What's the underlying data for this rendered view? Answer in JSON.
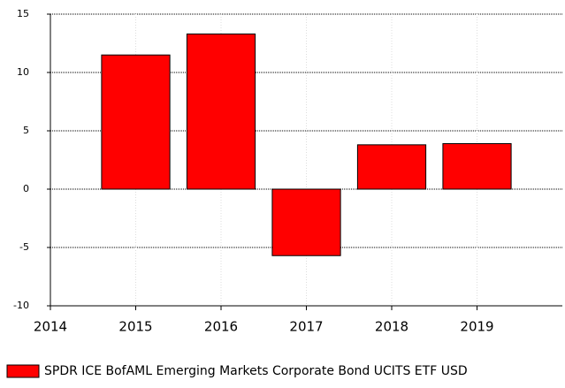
{
  "chart_data": {
    "type": "bar",
    "x": [
      2015,
      2016,
      2017,
      2018,
      2019
    ],
    "series": [
      {
        "name": "SPDR ICE BofAML Emerging Markets Corporate Bond UCITS ETF USD",
        "color": "#ff0000",
        "values": [
          11.5,
          13.3,
          -5.7,
          3.8,
          3.9
        ]
      }
    ],
    "xlim": [
      2014,
      2020
    ],
    "xticks": [
      2014,
      2015,
      2016,
      2017,
      2018,
      2019
    ],
    "ylim": [
      -10,
      15
    ],
    "yticks": [
      -10,
      -5,
      0,
      5,
      10,
      15
    ],
    "grid": true,
    "legend": "bottom"
  }
}
